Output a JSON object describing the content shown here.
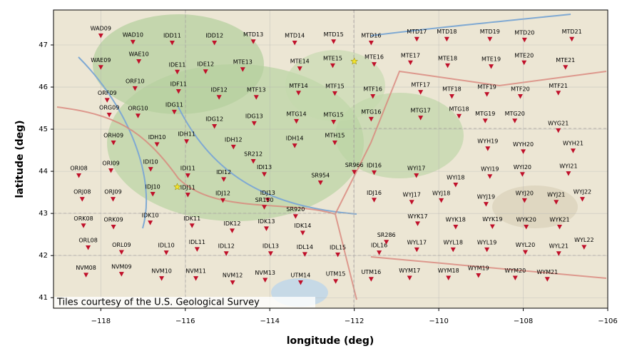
{
  "chart_data": {
    "type": "scatter",
    "xlabel": "longitude (deg)",
    "ylabel": "latitude (deg)",
    "attribution": "Tiles courtesy of the U.S. Geological Survey",
    "xlim": [
      -119.12,
      -106.0
    ],
    "ylim": [
      40.75,
      47.83
    ],
    "xticks": [
      {
        "value": -118,
        "label": "−118"
      },
      {
        "value": -116,
        "label": "−116"
      },
      {
        "value": -114,
        "label": "−114"
      },
      {
        "value": -112,
        "label": "−112"
      },
      {
        "value": -110,
        "label": "−110"
      },
      {
        "value": -108,
        "label": "−108"
      },
      {
        "value": -106,
        "label": "−106"
      }
    ],
    "yticks": [
      41,
      42,
      43,
      44,
      45,
      46,
      47
    ],
    "grid": true,
    "series": [
      {
        "color": "#c0102a",
        "marker": "triangle-down",
        "labels": [
          "WAD09",
          "WAD10",
          "IDD11",
          "IDD12",
          "MTD13",
          "MTD14",
          "MTD15",
          "MTD16",
          "MTD17",
          "MTD18",
          "MTD19",
          "MTD20",
          "MTD21",
          "WAE09",
          "WAE10",
          "IDE11",
          "IDE12",
          "MTE13",
          "MTE14",
          "MTE15",
          "MTE16",
          "MTE17",
          "MTE18",
          "MTE19",
          "MTE20",
          "MTE21",
          "ORF09",
          "ORF10",
          "IDF11",
          "IDF12",
          "MTF13",
          "MTF14",
          "MTF15",
          "MTF16",
          "MTF17",
          "MTF18",
          "MTF19",
          "MTF20",
          "MTF21",
          "ORG09",
          "ORG10",
          "IDG11",
          "IDG12",
          "IDG13",
          "MTG14",
          "MTG15",
          "MTG16",
          "MTG17",
          "MTG18",
          "MTG19",
          "MTG20",
          "WYG21",
          "ORH09",
          "IDH10",
          "IDH11",
          "IDH12",
          "IDH14",
          "MTH15",
          "WYH19",
          "WYH20",
          "WYH21",
          "ORI08",
          "ORI09",
          "IDI10",
          "IDI11",
          "IDI12",
          "IDI13",
          "IDI16",
          "WYI17",
          "WYI18",
          "WYI19",
          "WYI20",
          "WYI21",
          "ORJ08",
          "ORJ09",
          "IDJ10",
          "IDJ11",
          "IDJ12",
          "IDJ13",
          "IDJ16",
          "WYJ17",
          "WYJ18",
          "WYJ19",
          "WYJ20",
          "WYJ21",
          "WYJ22",
          "ORK08",
          "ORK09",
          "IDK10",
          "IDK11",
          "IDK12",
          "IDK13",
          "IDK14",
          "WYK17",
          "WYK18",
          "WYK19",
          "WYK20",
          "WYK21",
          "ORL08",
          "ORL09",
          "IDL10",
          "IDL11",
          "IDL12",
          "IDL13",
          "IDL14",
          "IDL15",
          "IDL16",
          "WYL17",
          "WYL18",
          "WYL19",
          "WYL20",
          "WYL21",
          "WYL22",
          "NVM08",
          "NVM09",
          "NVM10",
          "NVM11",
          "NVM12",
          "NVM13",
          "UTM14",
          "UTM15",
          "UTM16",
          "WYM17",
          "WYM18",
          "WYM19",
          "WYM20",
          "WYM21",
          "SR212",
          "SR954",
          "SR150",
          "SR920",
          "SR966",
          "SR286"
        ],
        "x": [
          -118.0,
          -117.24,
          -116.31,
          -115.31,
          -114.39,
          -113.41,
          -112.49,
          -111.6,
          -110.52,
          -109.81,
          -108.79,
          -107.97,
          -106.85,
          -118.0,
          -117.1,
          -116.19,
          -115.52,
          -114.64,
          -113.29,
          -112.51,
          -111.53,
          -110.67,
          -109.79,
          -108.76,
          -107.98,
          -107.0,
          -117.85,
          -117.19,
          -116.16,
          -115.2,
          -114.32,
          -113.32,
          -112.46,
          -111.56,
          -110.43,
          -109.69,
          -108.86,
          -108.07,
          -107.17,
          -117.8,
          -117.12,
          -116.26,
          -115.31,
          -114.37,
          -113.37,
          -112.49,
          -111.6,
          -110.43,
          -109.52,
          -108.9,
          -108.2,
          -107.17,
          -117.7,
          -116.67,
          -115.97,
          -114.86,
          -113.41,
          -112.46,
          -108.84,
          -108.0,
          -106.82,
          -118.52,
          -117.76,
          -116.82,
          -115.94,
          -115.09,
          -114.13,
          -111.53,
          -110.53,
          -109.6,
          -108.79,
          -108.02,
          -106.93,
          -118.44,
          -117.71,
          -116.77,
          -115.94,
          -115.11,
          -114.05,
          -111.53,
          -110.64,
          -109.94,
          -108.88,
          -107.97,
          -107.22,
          -106.6,
          -118.41,
          -117.7,
          -116.83,
          -115.84,
          -114.89,
          -114.08,
          -113.22,
          -110.5,
          -109.6,
          -108.73,
          -107.93,
          -107.14,
          -118.3,
          -117.51,
          -116.45,
          -115.72,
          -115.03,
          -113.98,
          -113.17,
          -112.39,
          -111.41,
          -110.52,
          -109.66,
          -108.86,
          -107.95,
          -107.16,
          -106.56,
          -118.35,
          -117.51,
          -116.56,
          -115.75,
          -114.88,
          -114.11,
          -113.27,
          -112.44,
          -111.6,
          -110.69,
          -109.77,
          -109.06,
          -108.19,
          -107.43,
          -114.39,
          -112.8,
          -114.13,
          -113.39,
          -112.0,
          -111.24
        ],
        "y": [
          47.22,
          47.07,
          47.05,
          47.05,
          47.08,
          47.05,
          47.08,
          47.05,
          47.14,
          47.14,
          47.14,
          47.12,
          47.14,
          46.47,
          46.61,
          46.36,
          46.37,
          46.42,
          46.44,
          46.51,
          46.54,
          46.58,
          46.51,
          46.49,
          46.58,
          46.47,
          45.69,
          45.97,
          45.9,
          45.76,
          45.76,
          45.86,
          45.85,
          45.78,
          45.88,
          45.78,
          45.83,
          45.78,
          45.86,
          45.34,
          45.32,
          45.41,
          45.07,
          45.14,
          45.19,
          45.17,
          45.24,
          45.27,
          45.31,
          45.2,
          45.2,
          44.97,
          44.68,
          44.64,
          44.71,
          44.58,
          44.61,
          44.68,
          44.54,
          44.47,
          44.49,
          43.9,
          44.02,
          44.05,
          43.9,
          43.81,
          43.93,
          43.97,
          43.9,
          43.68,
          43.88,
          43.93,
          43.95,
          43.34,
          43.34,
          43.46,
          43.44,
          43.31,
          43.32,
          43.32,
          43.27,
          43.31,
          43.22,
          43.31,
          43.27,
          43.34,
          42.71,
          42.68,
          42.78,
          42.71,
          42.59,
          42.64,
          42.54,
          42.76,
          42.68,
          42.69,
          42.68,
          42.68,
          42.19,
          42.08,
          42.07,
          42.15,
          42.05,
          42.05,
          42.03,
          42.02,
          42.07,
          42.14,
          42.14,
          42.14,
          42.08,
          42.05,
          42.2,
          41.54,
          41.56,
          41.46,
          41.46,
          41.36,
          41.42,
          41.36,
          41.39,
          41.44,
          41.47,
          41.47,
          41.53,
          41.47,
          41.44,
          44.24,
          43.73,
          43.15,
          42.93,
          43.98,
          42.32
        ]
      },
      {
        "color": "#f2e32c",
        "marker": "star",
        "x": [
          -112.0,
          -116.19
        ],
        "y": [
          46.61,
          43.63
        ]
      }
    ]
  }
}
